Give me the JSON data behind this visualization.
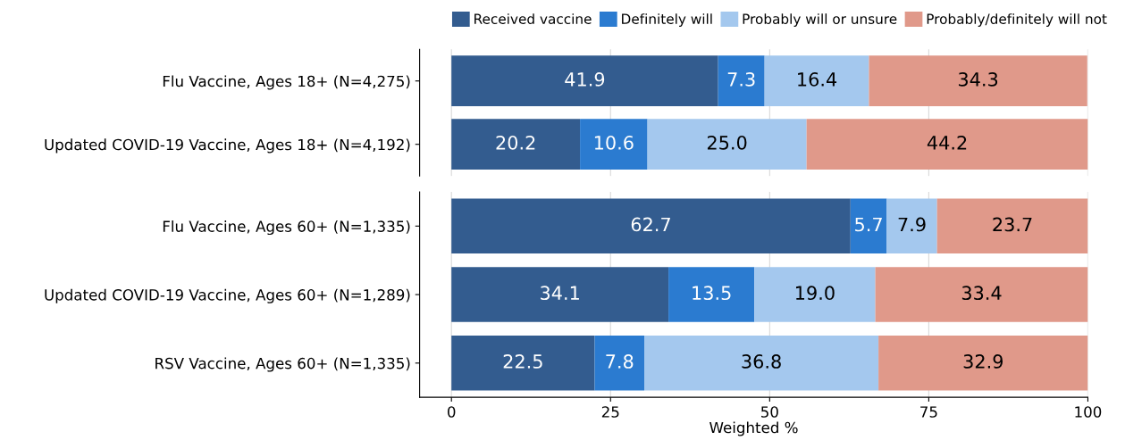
{
  "chart_data": [
    {
      "type": "bar",
      "orientation": "horizontal",
      "stacked": true,
      "categories": [
        "Flu Vaccine, Ages 18+ (N=4,275)",
        "Updated COVID-19 Vaccine, Ages 18+ (N=4,192)"
      ],
      "series": [
        {
          "name": "Received vaccine",
          "color": "#335c8f",
          "values": [
            41.9,
            20.2
          ],
          "value_labels": [
            "41.9",
            "20.2"
          ]
        },
        {
          "name": "Definitely will",
          "color": "#2b7bd0",
          "values": [
            7.3,
            10.6
          ],
          "value_labels": [
            "7.3",
            "10.6"
          ]
        },
        {
          "name": "Probably will or unsure",
          "color": "#a4c8ee",
          "values": [
            16.4,
            25.0
          ],
          "value_labels": [
            "16.4",
            "25.0"
          ]
        },
        {
          "name": "Probably/definitely will not",
          "color": "#e0998a",
          "values": [
            34.3,
            44.2
          ],
          "value_labels": [
            "34.3",
            "44.2"
          ]
        }
      ],
      "xlim": [
        -5,
        100
      ],
      "xticks": [
        0,
        25,
        50,
        75,
        100
      ],
      "tick_labels": "y",
      "grid": "x",
      "legend": "top right"
    },
    {
      "type": "bar",
      "orientation": "horizontal",
      "stacked": true,
      "categories": [
        "Flu Vaccine, Ages 60+ (N=1,335)",
        "Updated COVID-19 Vaccine, Ages 60+ (N=1,289)",
        "RSV Vaccine, Ages 60+ (N=1,335)"
      ],
      "series": [
        {
          "color": "#335c8f",
          "values": [
            62.7,
            34.1,
            22.5
          ],
          "value_labels": [
            "62.7",
            "34.1",
            "22.5"
          ]
        },
        {
          "color": "#2b7bd0",
          "values": [
            5.7,
            13.5,
            7.8
          ],
          "value_labels": [
            "5.7",
            "13.5",
            "7.8"
          ]
        },
        {
          "color": "#a4c8ee",
          "values": [
            7.9,
            19.0,
            36.8
          ],
          "value_labels": [
            "7.9",
            "19.0",
            "36.8"
          ]
        },
        {
          "color": "#e0998a",
          "values": [
            23.7,
            33.4,
            32.9
          ],
          "value_labels": [
            "23.7",
            "33.4",
            "32.9"
          ]
        }
      ],
      "xlim": [
        -5,
        100
      ],
      "xticks": [
        0,
        25,
        50,
        75,
        100
      ],
      "xlabel": "Weighted %",
      "grid": "x"
    }
  ]
}
